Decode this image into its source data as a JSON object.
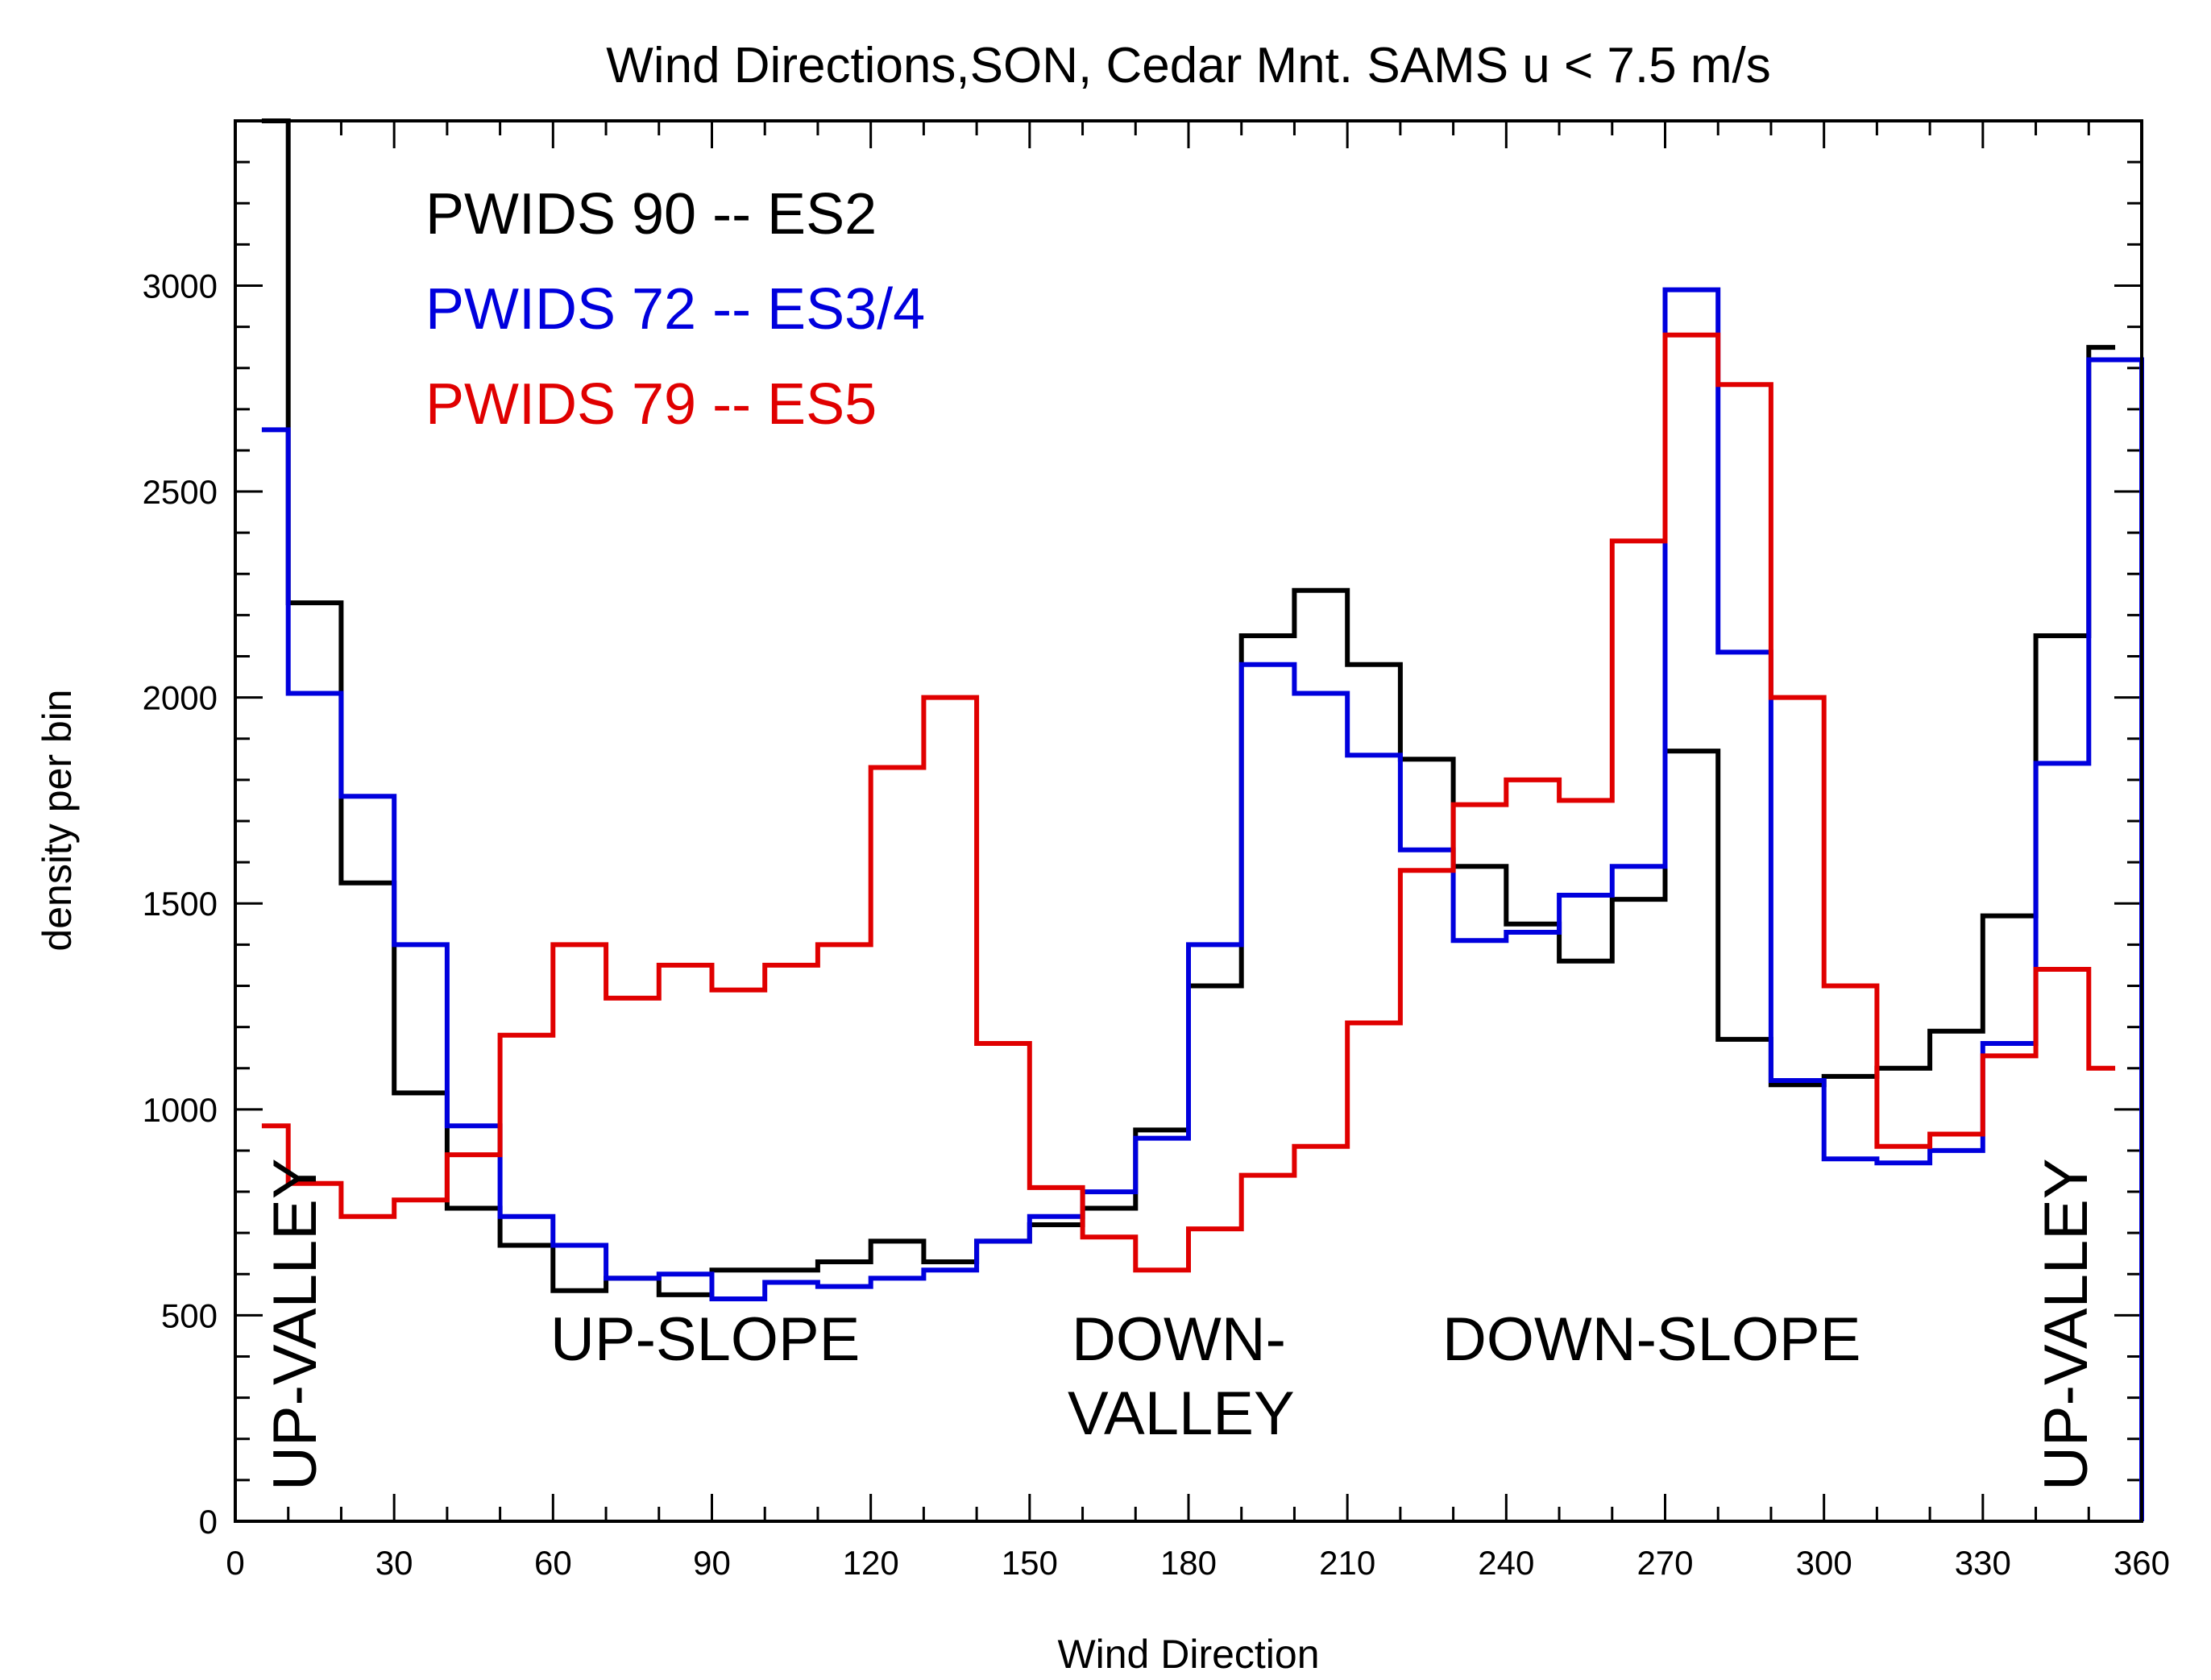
{
  "chart_data": {
    "type": "line",
    "step": true,
    "title": "Wind Directions,SON, Cedar Mnt. SAMS u < 7.5 m/s",
    "xlabel": "Wind Direction",
    "ylabel": "density per bin",
    "xlim": [
      0,
      360
    ],
    "ylim": [
      0,
      3400
    ],
    "xticks": [
      0,
      30,
      60,
      90,
      120,
      150,
      180,
      210,
      240,
      270,
      300,
      330,
      360
    ],
    "yticks": [
      0,
      500,
      1000,
      1500,
      2000,
      2500,
      3000
    ],
    "x_bin_edges": [
      5,
      10,
      20,
      30,
      40,
      50,
      60,
      70,
      80,
      90,
      100,
      110,
      120,
      130,
      140,
      150,
      160,
      170,
      180,
      190,
      200,
      210,
      220,
      230,
      240,
      250,
      260,
      270,
      280,
      290,
      300,
      310,
      320,
      330,
      340,
      350,
      355
    ],
    "series": [
      {
        "name": "PWIDS 90 -- ES2",
        "color": "#000000",
        "values": [
          3400,
          2230,
          1550,
          1040,
          760,
          670,
          560,
          590,
          550,
          610,
          610,
          630,
          680,
          630,
          680,
          720,
          760,
          950,
          1300,
          2150,
          2260,
          2080,
          1850,
          1590,
          1450,
          1360,
          1510,
          1870,
          1170,
          1060,
          1080,
          1100,
          1190,
          1470,
          2150,
          2850
        ]
      },
      {
        "name": "PWIDS 72 -- ES3/4",
        "color": "#0000dd",
        "values": [
          2650,
          2010,
          1760,
          1400,
          960,
          740,
          670,
          590,
          600,
          540,
          580,
          570,
          590,
          610,
          680,
          740,
          800,
          930,
          1400,
          2080,
          2010,
          1860,
          1630,
          1410,
          1430,
          1520,
          1590,
          2990,
          2110,
          1070,
          880,
          870,
          900,
          1160,
          1840,
          2820
        ]
      },
      {
        "name": "PWIDS 79 -- ES5",
        "color": "#e00000",
        "values": [
          960,
          820,
          740,
          780,
          890,
          1180,
          1400,
          1270,
          1350,
          1290,
          1350,
          1400,
          1830,
          2000,
          1160,
          810,
          690,
          610,
          710,
          840,
          910,
          1210,
          1580,
          1740,
          1800,
          1750,
          2380,
          2880,
          2760,
          2000,
          1300,
          910,
          940,
          1130,
          1340,
          1100
        ]
      }
    ],
    "legend_placement": "top-left",
    "annotations": [
      "UP-VALLEY",
      "UP-SLOPE",
      "DOWN-",
      "VALLEY",
      "DOWN-SLOPE",
      "UP-VALLEY"
    ]
  }
}
